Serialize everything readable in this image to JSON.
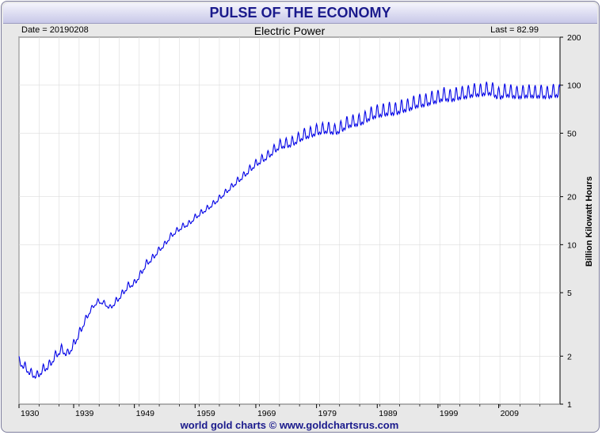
{
  "header": {
    "title": "PULSE OF THE ECONOMY"
  },
  "meta": {
    "date": "Date = 20190208",
    "last": "Last = 82.99"
  },
  "footer": {
    "credit": "world gold charts © www.goldchartsrus.com"
  },
  "colors": {
    "line": "#0000e6",
    "grid": "#dcdcdc",
    "title": "#1a1a8c"
  },
  "chart_data": {
    "type": "line",
    "title": "Electric Power",
    "ylabel": "Billion Kilowatt Hours",
    "y_scale": "log",
    "ylim": [
      1,
      200
    ],
    "xlim": [
      1930,
      2019.1
    ],
    "y_ticks": [
      1,
      2,
      5,
      10,
      20,
      50,
      100,
      200
    ],
    "x_ticks": [
      1930,
      1939,
      1949,
      1959,
      1969,
      1979,
      1989,
      1999,
      2009
    ],
    "grid": true,
    "series": [
      {
        "name": "Electric Power",
        "x": [
          1930,
          1931,
          1932,
          1933,
          1934,
          1935,
          1936,
          1937,
          1938,
          1939,
          1940,
          1941,
          1942,
          1943,
          1944,
          1945,
          1946,
          1947,
          1948,
          1949,
          1950,
          1951,
          1952,
          1953,
          1954,
          1955,
          1956,
          1957,
          1958,
          1959,
          1960,
          1961,
          1962,
          1963,
          1964,
          1965,
          1966,
          1967,
          1968,
          1969,
          1970,
          1971,
          1972,
          1973,
          1974,
          1975,
          1976,
          1977,
          1978,
          1979,
          1980,
          1981,
          1982,
          1983,
          1984,
          1985,
          1986,
          1987,
          1988,
          1989,
          1990,
          1991,
          1992,
          1993,
          1994,
          1995,
          1996,
          1997,
          1998,
          1999,
          2000,
          2001,
          2002,
          2003,
          2004,
          2005,
          2006,
          2007,
          2008,
          2009,
          2010,
          2011,
          2012,
          2013,
          2014,
          2015,
          2016,
          2017,
          2018,
          2019
        ],
        "values": [
          1.85,
          1.7,
          1.55,
          1.5,
          1.65,
          1.75,
          2.0,
          2.2,
          2.05,
          2.35,
          2.8,
          3.4,
          4.0,
          4.4,
          4.3,
          4.0,
          4.4,
          4.9,
          5.5,
          5.7,
          6.5,
          7.6,
          8.2,
          9.2,
          10.0,
          11.3,
          12.2,
          13.0,
          13.5,
          14.8,
          15.8,
          16.8,
          18.0,
          19.5,
          21.2,
          23.0,
          25.0,
          27.0,
          29.5,
          32.0,
          34.0,
          36.0,
          39.0,
          42.0,
          42.5,
          43.5,
          46.0,
          48.5,
          49.5,
          51.5,
          52.5,
          53.0,
          51.5,
          53.5,
          57.0,
          58.5,
          59.0,
          61.5,
          65.0,
          67.0,
          68.0,
          69.5,
          69.0,
          72.0,
          73.0,
          76.0,
          78.0,
          78.5,
          81.5,
          82.5,
          86.0,
          83.5,
          86.0,
          87.5,
          88.5,
          91.0,
          90.5,
          93.0,
          92.0,
          86.0,
          90.5,
          89.5,
          87.5,
          88.5,
          89.5,
          88.5,
          89.0,
          87.5,
          90.0,
          89.5
        ],
        "seasonal_swing": [
          0.08,
          0.08,
          0.08,
          0.08,
          0.08,
          0.08,
          0.08,
          0.08,
          0.08,
          0.08,
          0.08,
          0.06,
          0.04,
          0.04,
          0.04,
          0.05,
          0.06,
          0.06,
          0.06,
          0.06,
          0.06,
          0.06,
          0.06,
          0.05,
          0.05,
          0.05,
          0.05,
          0.05,
          0.05,
          0.05,
          0.05,
          0.05,
          0.05,
          0.05,
          0.05,
          0.05,
          0.06,
          0.06,
          0.07,
          0.07,
          0.08,
          0.08,
          0.09,
          0.09,
          0.1,
          0.1,
          0.1,
          0.11,
          0.11,
          0.11,
          0.11,
          0.11,
          0.11,
          0.12,
          0.12,
          0.12,
          0.12,
          0.12,
          0.13,
          0.13,
          0.13,
          0.13,
          0.13,
          0.13,
          0.13,
          0.13,
          0.13,
          0.13,
          0.13,
          0.13,
          0.13,
          0.13,
          0.13,
          0.13,
          0.13,
          0.13,
          0.13,
          0.13,
          0.13,
          0.13,
          0.13,
          0.13,
          0.13,
          0.13,
          0.13,
          0.13,
          0.13,
          0.13,
          0.13,
          0.13
        ]
      }
    ]
  }
}
